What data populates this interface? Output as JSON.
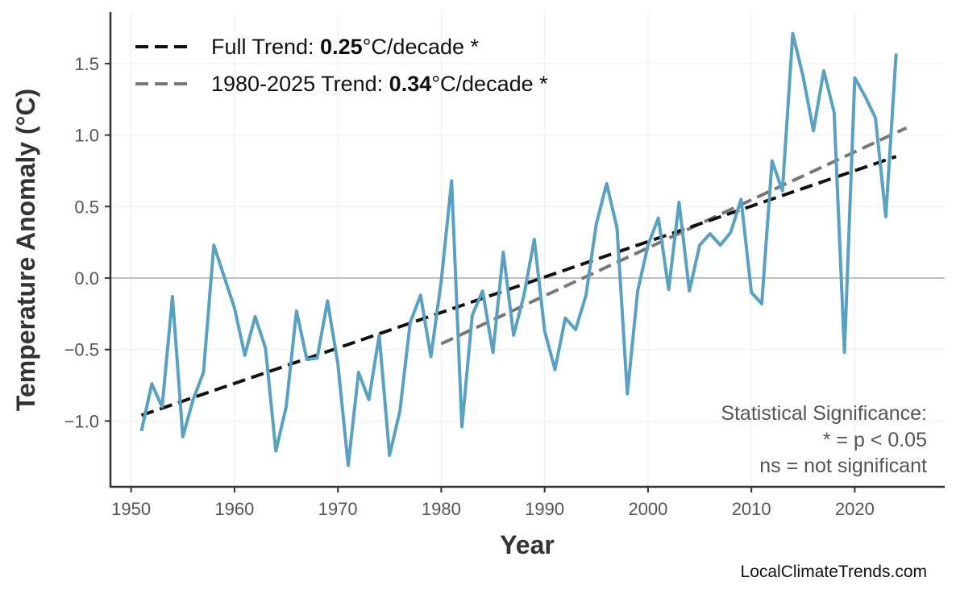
{
  "chart_data": {
    "type": "line",
    "xlabel": "Year",
    "ylabel": "Temperature Anomaly (°C)",
    "xlim": [
      1948,
      2028.7
    ],
    "ylim": [
      -1.46,
      1.86
    ],
    "xticks": [
      1950,
      1960,
      1970,
      1980,
      1990,
      2000,
      2010,
      2020
    ],
    "yticks": [
      -1.0,
      -0.5,
      0.0,
      0.5,
      1.0,
      1.5
    ],
    "ytick_labels": [
      "−1.0",
      "−0.5",
      "0.0",
      "0.5",
      "1.0",
      "1.5"
    ],
    "grid": true,
    "legend_position": "top-left",
    "colors": {
      "series": "#5aa0c0",
      "full_trend": "#111111",
      "recent_trend": "#777777",
      "zero_line": "#aaaaaa"
    },
    "series": [
      {
        "x": [
          1951,
          1952,
          1953,
          1954,
          1955,
          1956,
          1957,
          1958,
          1959,
          1960,
          1961,
          1962,
          1963,
          1964,
          1965,
          1966,
          1967,
          1968,
          1969,
          1970,
          1971,
          1972,
          1973,
          1974,
          1975,
          1976,
          1977,
          1978,
          1979,
          1980,
          1981,
          1982,
          1983,
          1984,
          1985,
          1986,
          1987,
          1988,
          1989,
          1990,
          1991,
          1992,
          1993,
          1994,
          1995,
          1996,
          1997,
          1998,
          1999,
          2000,
          2001,
          2002,
          2003,
          2004,
          2005,
          2006,
          2007,
          2008,
          2009,
          2010,
          2011,
          2012,
          2013,
          2014,
          2015,
          2016,
          2017,
          2018,
          2019,
          2020,
          2021,
          2022,
          2023,
          2024
        ],
        "y": [
          -1.07,
          -0.74,
          -0.9,
          -0.13,
          -1.11,
          -0.85,
          -0.66,
          0.23,
          0.01,
          -0.21,
          -0.54,
          -0.27,
          -0.49,
          -1.21,
          -0.9,
          -0.23,
          -0.57,
          -0.56,
          -0.16,
          -0.6,
          -1.31,
          -0.66,
          -0.85,
          -0.4,
          -1.24,
          -0.93,
          -0.31,
          -0.12,
          -0.55,
          -0.02,
          0.68,
          -1.04,
          -0.26,
          -0.09,
          -0.52,
          0.18,
          -0.4,
          -0.12,
          0.27,
          -0.37,
          -0.64,
          -0.28,
          -0.36,
          -0.12,
          0.38,
          0.66,
          0.35,
          -0.81,
          -0.09,
          0.23,
          0.42,
          -0.08,
          0.53,
          -0.09,
          0.23,
          0.31,
          0.23,
          0.32,
          0.55,
          -0.1,
          -0.18,
          0.82,
          0.61,
          1.71,
          1.41,
          1.03,
          1.45,
          1.16,
          -0.52,
          1.4,
          1.27,
          1.12,
          0.43,
          1.57
        ]
      }
    ],
    "trends": [
      {
        "label_prefix": "Full Trend: ",
        "value": "0.25",
        "label_suffix": "°C/decade *",
        "x": [
          1951,
          2024
        ],
        "y": [
          -0.96,
          0.85
        ]
      },
      {
        "label_prefix": "1980-2025 Trend: ",
        "value": "0.34",
        "label_suffix": "°C/decade *",
        "x": [
          1980,
          2025
        ],
        "y": [
          -0.46,
          1.05
        ]
      }
    ],
    "annotation": [
      "Statistical Significance:",
      "* = p < 0.05",
      "ns = not significant"
    ]
  },
  "watermark": "LocalClimateTrends.com"
}
